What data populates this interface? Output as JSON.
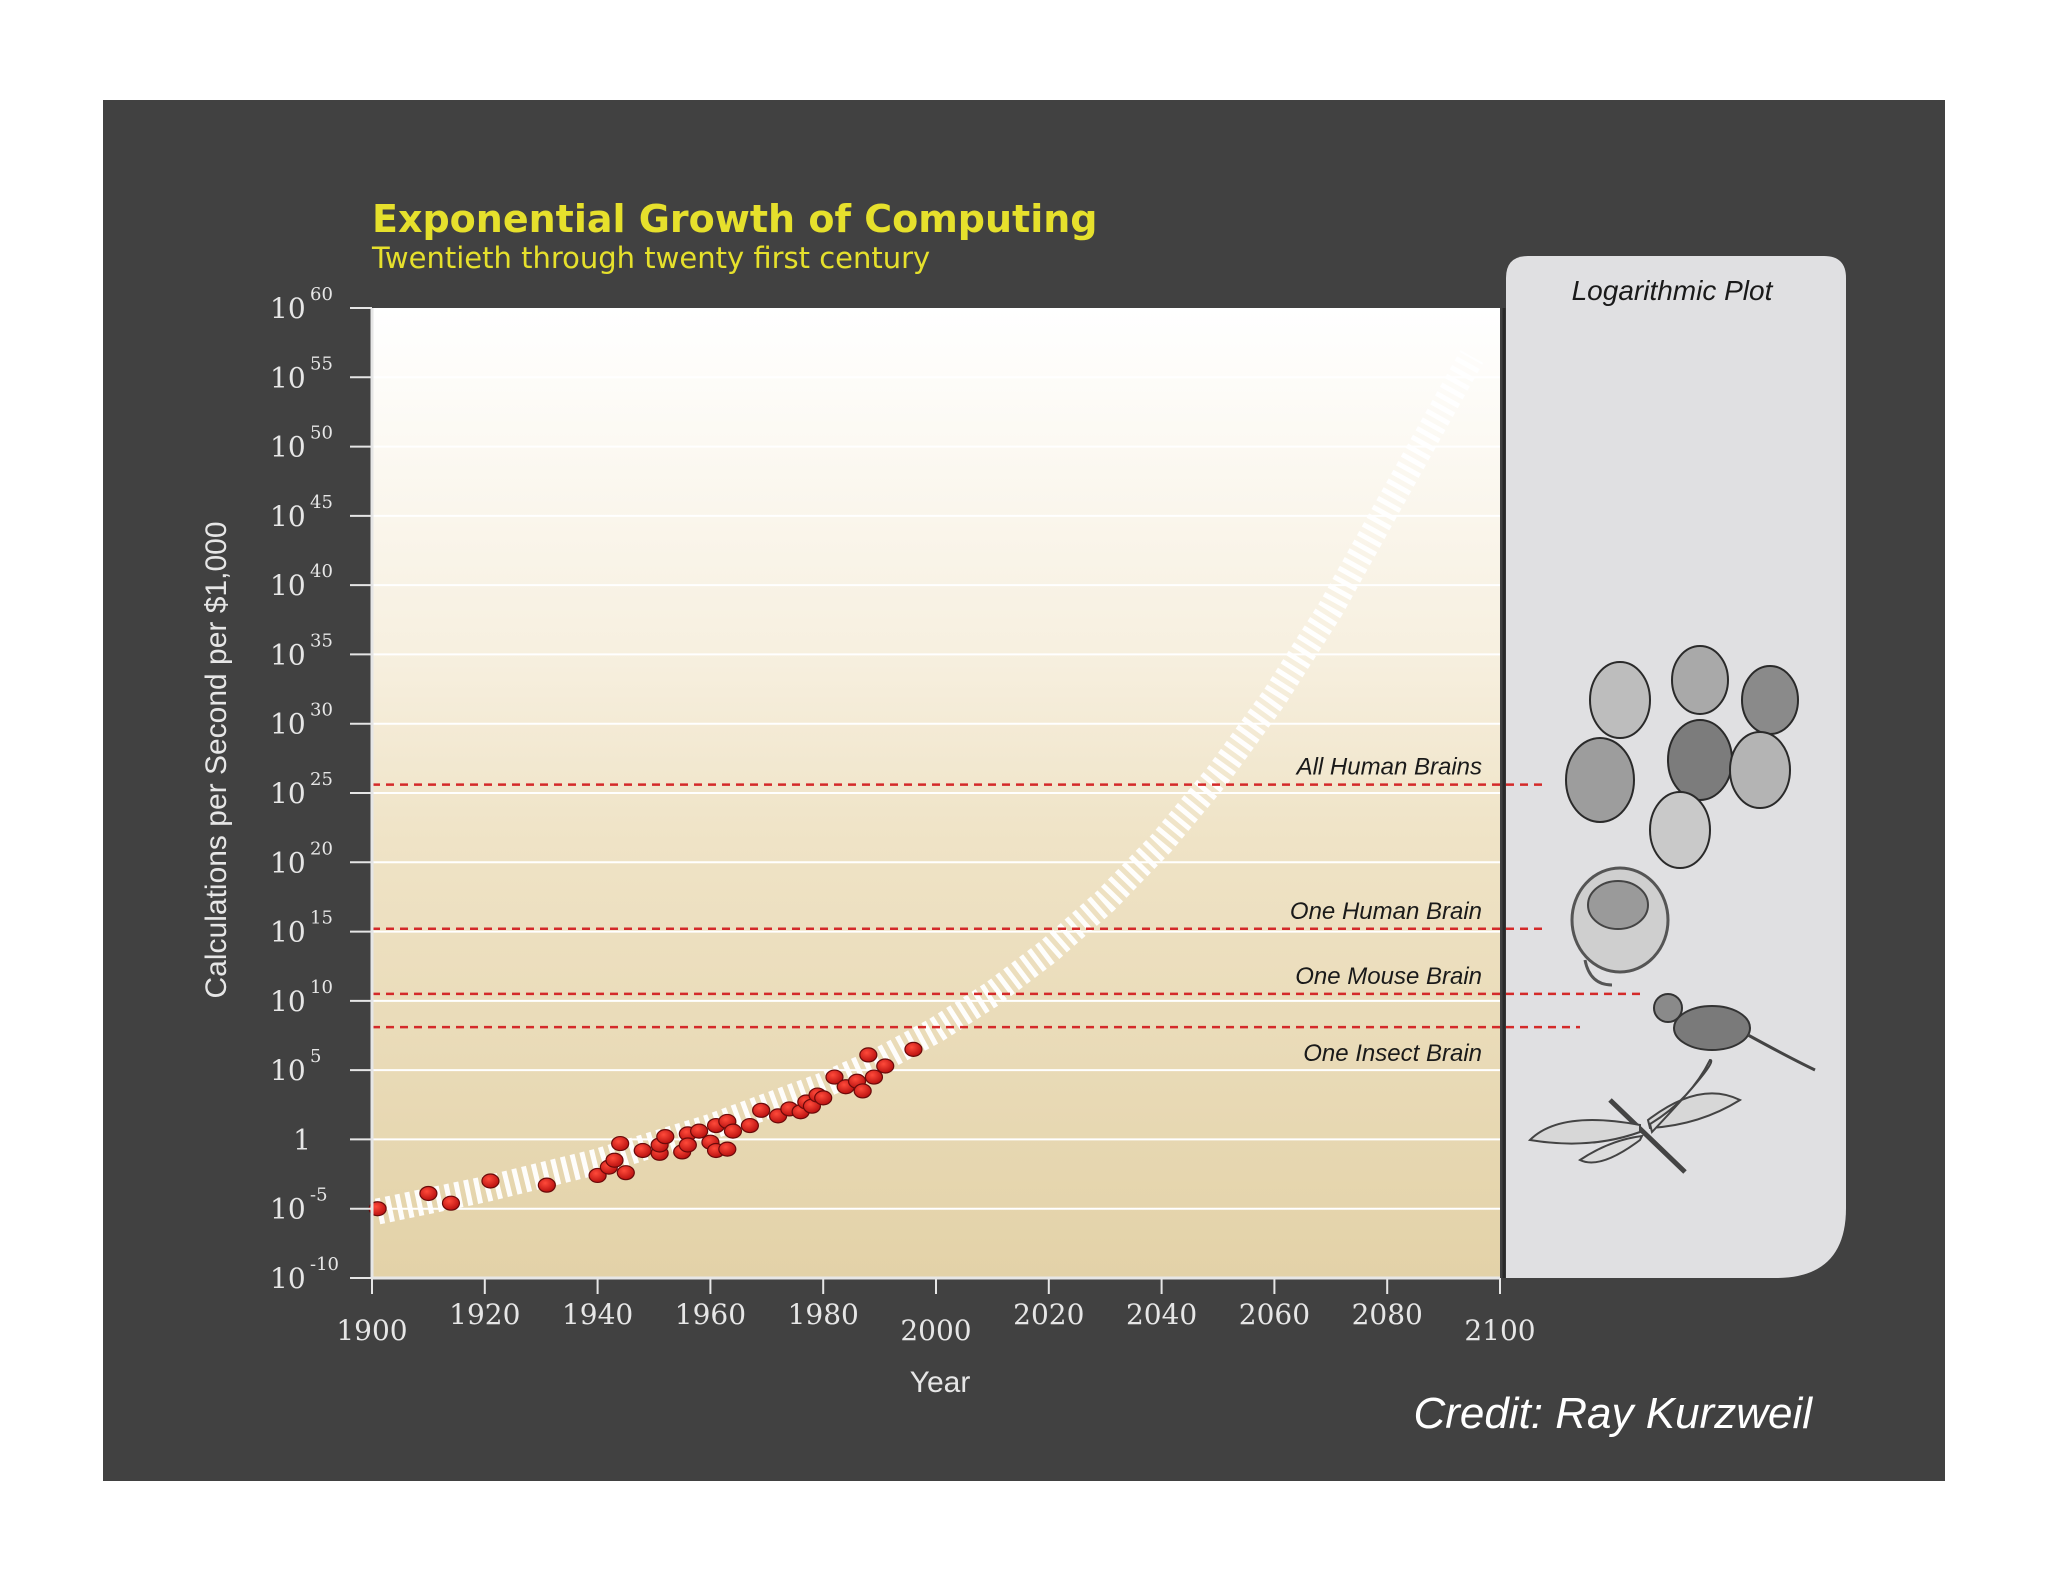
{
  "chart_data": {
    "type": "scatter",
    "title": "Exponential Growth of Computing",
    "subtitle": "Twentieth through twenty first century",
    "xlabel": "Year",
    "ylabel": "Calculations per Second per $1,000",
    "xlim": [
      1900,
      2100
    ],
    "ylim_exponent": [
      -10,
      60
    ],
    "y_scale": "log",
    "x_ticks": [
      1900,
      1920,
      1940,
      1960,
      1980,
      2000,
      2020,
      2040,
      2060,
      2080,
      2100
    ],
    "y_ticks": [
      {
        "base": "10",
        "exp": "60",
        "value": 60
      },
      {
        "base": "10",
        "exp": "55",
        "value": 55
      },
      {
        "base": "10",
        "exp": "50",
        "value": 50
      },
      {
        "base": "10",
        "exp": "45",
        "value": 45
      },
      {
        "base": "10",
        "exp": "40",
        "value": 40
      },
      {
        "base": "10",
        "exp": "35",
        "value": 35
      },
      {
        "base": "10",
        "exp": "30",
        "value": 30
      },
      {
        "base": "10",
        "exp": "25",
        "value": 25
      },
      {
        "base": "10",
        "exp": "20",
        "value": 20
      },
      {
        "base": "10",
        "exp": "15",
        "value": 15
      },
      {
        "base": "10",
        "exp": "10",
        "value": 10
      },
      {
        "base": "10",
        "exp": "5",
        "value": 5
      },
      {
        "base": "1",
        "exp": "",
        "value": 0
      },
      {
        "base": "10",
        "exp": "-5",
        "value": -5
      },
      {
        "base": "10",
        "exp": "-10",
        "value": -10
      }
    ],
    "points": [
      [
        1901,
        -5.0
      ],
      [
        1910,
        -3.9
      ],
      [
        1914,
        -4.6
      ],
      [
        1921,
        -3.0
      ],
      [
        1931,
        -3.3
      ],
      [
        1940,
        -2.6
      ],
      [
        1942,
        -2.0
      ],
      [
        1943,
        -1.5
      ],
      [
        1944,
        -0.3
      ],
      [
        1945,
        -2.4
      ],
      [
        1948,
        -0.8
      ],
      [
        1951,
        -1.0
      ],
      [
        1951,
        -0.4
      ],
      [
        1952,
        0.2
      ],
      [
        1955,
        -0.9
      ],
      [
        1956,
        0.4
      ],
      [
        1956,
        -0.4
      ],
      [
        1958,
        0.6
      ],
      [
        1960,
        -0.2
      ],
      [
        1961,
        -0.8
      ],
      [
        1961,
        1.0
      ],
      [
        1963,
        1.3
      ],
      [
        1963,
        -0.7
      ],
      [
        1964,
        0.6
      ],
      [
        1967,
        1.0
      ],
      [
        1969,
        2.1
      ],
      [
        1972,
        1.7
      ],
      [
        1974,
        2.2
      ],
      [
        1976,
        2.0
      ],
      [
        1977,
        2.7
      ],
      [
        1978,
        2.4
      ],
      [
        1979,
        3.2
      ],
      [
        1980,
        3.0
      ],
      [
        1982,
        4.5
      ],
      [
        1984,
        3.8
      ],
      [
        1986,
        4.2
      ],
      [
        1987,
        3.5
      ],
      [
        1988,
        6.1
      ],
      [
        1989,
        4.5
      ],
      [
        1991,
        5.3
      ],
      [
        1996,
        6.5
      ]
    ],
    "trend_curve": [
      [
        1901,
        -5.2
      ],
      [
        1920,
        -3.6
      ],
      [
        1940,
        -1.6
      ],
      [
        1960,
        0.9
      ],
      [
        1980,
        3.9
      ],
      [
        1990,
        5.7
      ],
      [
        2000,
        7.9
      ],
      [
        2010,
        10.5
      ],
      [
        2020,
        13.6
      ],
      [
        2030,
        17.2
      ],
      [
        2040,
        21.4
      ],
      [
        2050,
        26.3
      ],
      [
        2060,
        31.9
      ],
      [
        2070,
        38.3
      ],
      [
        2080,
        45.6
      ],
      [
        2095,
        56.5
      ]
    ],
    "reference_lines": [
      {
        "label": "All Human Brains",
        "value": 25.6,
        "color": "#d42a2a"
      },
      {
        "label": "One Human Brain",
        "value": 15.2,
        "color": "#d42a2a"
      },
      {
        "label": "One Mouse Brain",
        "value": 10.5,
        "color": "#d42a2a"
      },
      {
        "label": "One Insect Brain",
        "value": 8.1,
        "color": "#d42a2a"
      }
    ],
    "point_color": "#cc1111",
    "grid": true
  },
  "side_panel": {
    "title": "Logarithmic Plot",
    "illustrations": [
      "human-heads-illustration",
      "human-brain-illustration",
      "mouse-illustration",
      "dragonfly-illustration"
    ]
  },
  "credit": "Credit: Ray Kurzweil",
  "colors": {
    "background": "#414141",
    "title": "#e6e02c",
    "plot_top": "#ffffff",
    "plot_bottom": "#e3d4ad",
    "panel": "#e0e0e2"
  }
}
